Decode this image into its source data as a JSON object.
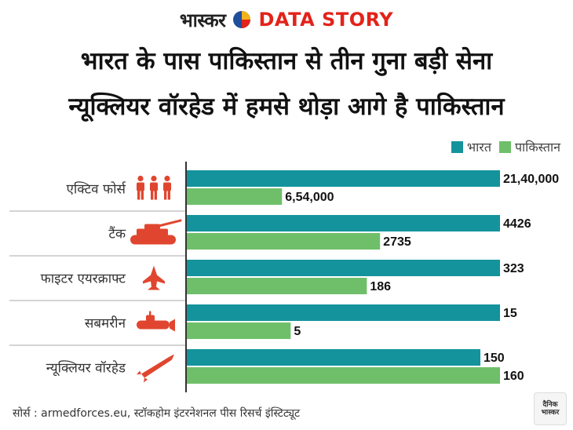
{
  "brand": {
    "bhaskar": "भास्कर",
    "data_story": "DATA STORY",
    "colors": {
      "red": "#e2231a",
      "blue": "#1f4e9c",
      "yellow": "#f2b31b"
    }
  },
  "title": {
    "line1": "भारत के पास पाकिस्तान से तीन गुना बड़ी सेना",
    "line2": "न्यूक्लियर वॉरहेड में हमसे थोड़ा आगे है पाकिस्तान"
  },
  "legend": {
    "india": "भारत",
    "pakistan": "पाकिस्तान"
  },
  "colors": {
    "india": "#14939c",
    "pakistan": "#6fbf6a",
    "icon": "#e0462f",
    "axis": "#333333",
    "separator": "#aaaaaa"
  },
  "chart_data": {
    "type": "bar",
    "orientation": "horizontal",
    "categories": [
      "एक्टिव फोर्स",
      "टैंक",
      "फाइटर एयरक्राफ्ट",
      "सबमरीन",
      "न्यूक्लियर वॉरहेड"
    ],
    "category_icons": [
      "soldiers-icon",
      "tank-icon",
      "fighter-jet-icon",
      "submarine-icon",
      "missile-icon"
    ],
    "series": [
      {
        "name": "भारत",
        "key": "india",
        "values": [
          2140000,
          4426,
          323,
          15,
          150
        ],
        "labels": [
          "21,40,000",
          "4426",
          "323",
          "15",
          "150"
        ]
      },
      {
        "name": "पाकिस्तान",
        "key": "pakistan",
        "values": [
          654000,
          2735,
          186,
          5,
          160
        ],
        "labels": [
          "6,54,000",
          "2735",
          "186",
          "5",
          "160"
        ]
      }
    ],
    "title": "भारत के पास पाकिस्तान से तीन गुना बड़ी सेना",
    "subtitle": "न्यूक्लियर वॉरहेड में हमसे थोड़ा आगे है पाकिस्तान",
    "legend_position": "top-right",
    "scale": "per-category (bar lengths not to a common axis)"
  },
  "source": "सोर्स : armedforces.eu, स्टॉकहोम इंटरनेशनल पीस रिसर्च इंस्टिट्यूट",
  "stamp": {
    "line1": "दैनिक",
    "line2": "भास्कर"
  }
}
